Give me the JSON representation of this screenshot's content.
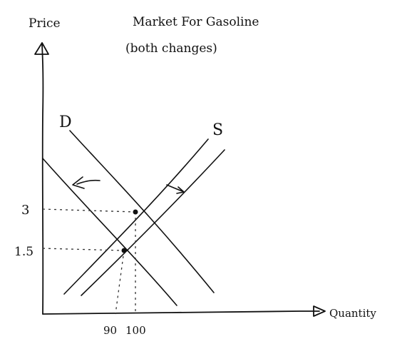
{
  "diagram": {
    "title_line1": "Market For Gasoline",
    "title_line2": "(both changes)",
    "y_axis_label": "Price",
    "x_axis_label": "Quantity",
    "demand_label": "D",
    "supply_label": "S"
  },
  "chart_data": {
    "type": "line",
    "title": "Market For Gasoline (both changes)",
    "xlabel": "Quantity",
    "ylabel": "Price",
    "y_ticks": [
      "3",
      "1.5"
    ],
    "x_ticks": [
      "90",
      "100"
    ],
    "series": [
      {
        "name": "D"
      },
      {
        "name": "S"
      }
    ],
    "equilibria": [
      {
        "quantity": 100,
        "price": 3
      },
      {
        "quantity": 90,
        "price": 1.5
      }
    ],
    "shifts": [
      "demand shifts left",
      "supply shifts right"
    ]
  }
}
